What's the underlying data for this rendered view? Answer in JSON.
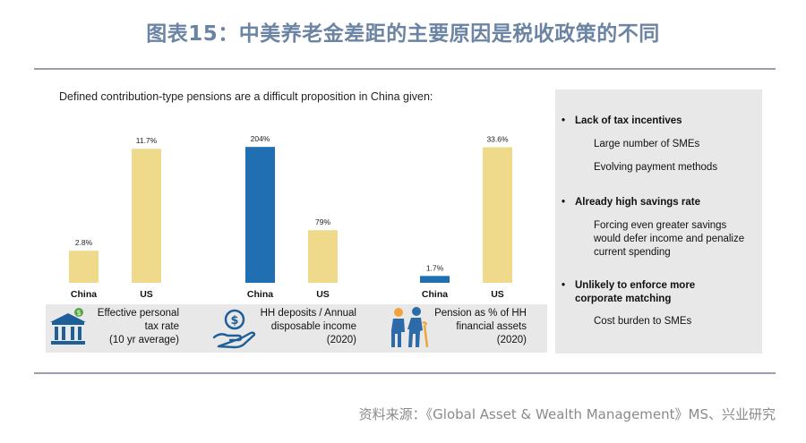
{
  "title": "图表15：中美养老金差距的主要原因是税收政策的不同",
  "subtitle": "Defined contribution-type pensions are a difficult proposition in China given:",
  "colors": {
    "china_tax": "#efd98a",
    "us": "#efd98a",
    "china_blue": "#1f6fb2",
    "rule": "#9a9ea6"
  },
  "chart_data": [
    {
      "type": "bar",
      "title": "Effective personal tax rate (10 yr average)",
      "categories": [
        "China",
        "US"
      ],
      "values": [
        2.8,
        11.7
      ],
      "value_labels": [
        "2.8%",
        "11.7%"
      ],
      "ylim": [
        0,
        12.5
      ],
      "bar_colors": [
        "#efd98a",
        "#efd98a"
      ],
      "icon": "bank-icon",
      "caption_lines": [
        "Effective personal",
        "tax rate",
        "(10 yr average)"
      ]
    },
    {
      "type": "bar",
      "title": "HH deposits / Annual disposable income (2020)",
      "categories": [
        "China",
        "US"
      ],
      "values": [
        204,
        79
      ],
      "value_labels": [
        "204%",
        "79%"
      ],
      "ylim": [
        0,
        215
      ],
      "bar_colors": [
        "#1f6fb2",
        "#efd98a"
      ],
      "icon": "money-hand-icon",
      "caption_lines": [
        "HH deposits / Annual",
        "disposable income",
        "(2020)"
      ]
    },
    {
      "type": "bar",
      "title": "Pension as % of HH financial assets (2020)",
      "categories": [
        "China",
        "US"
      ],
      "values": [
        1.7,
        33.6
      ],
      "value_labels": [
        "1.7%",
        "33.6%"
      ],
      "ylim": [
        0,
        35.5
      ],
      "bar_colors": [
        "#1f6fb2",
        "#efd98a"
      ],
      "icon": "elderly-couple-icon",
      "caption_lines": [
        "Pension as % of HH",
        "financial assets",
        "(2020)"
      ]
    }
  ],
  "panel": {
    "items": [
      {
        "kind": "head",
        "text": "Lack of tax incentives"
      },
      {
        "kind": "sub",
        "text": "Large number of SMEs"
      },
      {
        "kind": "sub",
        "text": "Evolving payment methods"
      },
      {
        "kind": "head",
        "text": "Already high savings rate"
      },
      {
        "kind": "sub",
        "text": "Forcing even greater savings would defer income and penalize current spending"
      },
      {
        "kind": "head",
        "text": "Unlikely to enforce more corporate matching"
      },
      {
        "kind": "sub",
        "text": "Cost burden to SMEs"
      }
    ]
  },
  "source": "资料来源：《Global Asset & Wealth Management》MS、兴业研究"
}
